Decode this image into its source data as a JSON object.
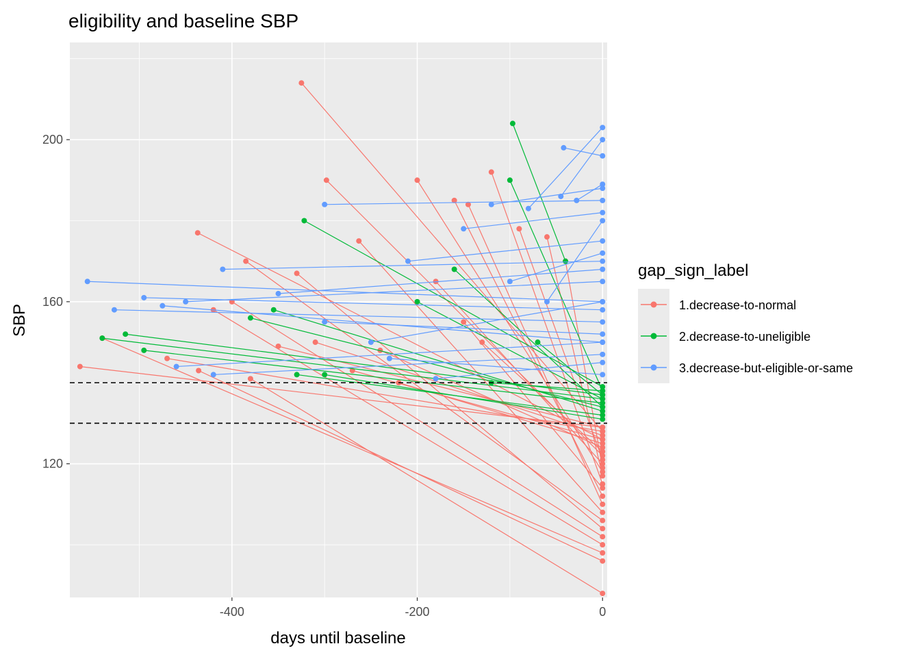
{
  "chart_data": {
    "type": "line",
    "title": "eligibility and baseline SBP",
    "xlabel": "days until baseline",
    "ylabel": "SBP",
    "xlim": [
      -575,
      5
    ],
    "ylim": [
      87,
      224
    ],
    "x_ticks": [
      -400,
      -200,
      0
    ],
    "y_ticks": [
      120,
      160,
      200
    ],
    "hlines": [
      140,
      130
    ],
    "grid": true,
    "legend": {
      "title": "gap_sign_label",
      "placement": "right"
    },
    "series": [
      {
        "name": "1.decrease-to-normal",
        "color": "#F8766D",
        "segments": [
          [
            [
              -564,
              144
            ],
            [
              0,
              129
            ]
          ],
          [
            [
              -325,
              214
            ],
            [
              0,
              128
            ]
          ],
          [
            [
              -437,
              177
            ],
            [
              0,
              126
            ]
          ],
          [
            [
              -298,
              190
            ],
            [
              0,
              122
            ]
          ],
          [
            [
              -200,
              190
            ],
            [
              0,
              118
            ]
          ],
          [
            [
              -120,
              192
            ],
            [
              0,
              115
            ]
          ],
          [
            [
              -160,
              185
            ],
            [
              0,
              112
            ]
          ],
          [
            [
              -145,
              184
            ],
            [
              0,
              110
            ]
          ],
          [
            [
              -263,
              175
            ],
            [
              0,
              108
            ]
          ],
          [
            [
              -385,
              170
            ],
            [
              0,
              106
            ]
          ],
          [
            [
              -330,
              167
            ],
            [
              0,
              104
            ]
          ],
          [
            [
              -400,
              160
            ],
            [
              0,
              102
            ]
          ],
          [
            [
              -420,
              158
            ],
            [
              0,
              100
            ]
          ],
          [
            [
              -540,
              151
            ],
            [
              0,
              98
            ]
          ],
          [
            [
              -436,
              143
            ],
            [
              0,
              96
            ]
          ],
          [
            [
              -380,
              141
            ],
            [
              0,
              88
            ]
          ],
          [
            [
              -220,
              140
            ],
            [
              0,
              125
            ]
          ],
          [
            [
              -180,
              165
            ],
            [
              0,
              120
            ]
          ],
          [
            [
              -310,
              150
            ],
            [
              0,
              127
            ]
          ],
          [
            [
              -240,
              148
            ],
            [
              0,
              124
            ]
          ],
          [
            [
              -90,
              178
            ],
            [
              0,
              121
            ]
          ],
          [
            [
              -60,
              176
            ],
            [
              0,
              117
            ]
          ],
          [
            [
              -150,
              155
            ],
            [
              0,
              114
            ]
          ],
          [
            [
              -350,
              149
            ],
            [
              0,
              129
            ]
          ],
          [
            [
              -470,
              146
            ],
            [
              0,
              128
            ]
          ],
          [
            [
              -270,
              143
            ],
            [
              0,
              126
            ]
          ],
          [
            [
              -130,
              150
            ],
            [
              0,
              123
            ]
          ],
          [
            [
              -40,
              170
            ],
            [
              0,
              119
            ]
          ]
        ]
      },
      {
        "name": "2.decrease-to-uneligible",
        "color": "#00BA38",
        "segments": [
          [
            [
              -322,
              180
            ],
            [
              0,
              139
            ]
          ],
          [
            [
              -97,
              204
            ],
            [
              -40,
              170
            ]
          ],
          [
            [
              -100,
              190
            ],
            [
              0,
              138
            ]
          ],
          [
            [
              -515,
              152
            ],
            [
              0,
              137
            ]
          ],
          [
            [
              -540,
              151
            ],
            [
              0,
              136
            ]
          ],
          [
            [
              -495,
              148
            ],
            [
              0,
              135
            ]
          ],
          [
            [
              -380,
              156
            ],
            [
              0,
              134
            ]
          ],
          [
            [
              -355,
              158
            ],
            [
              0,
              133
            ]
          ],
          [
            [
              -330,
              142
            ],
            [
              0,
              132
            ]
          ],
          [
            [
              -300,
              142
            ],
            [
              0,
              131
            ]
          ],
          [
            [
              -200,
              160
            ],
            [
              0,
              136
            ]
          ],
          [
            [
              -120,
              140
            ],
            [
              0,
              138
            ]
          ],
          [
            [
              -160,
              168
            ],
            [
              0,
              134
            ]
          ],
          [
            [
              -70,
              150
            ],
            [
              0,
              137
            ]
          ]
        ]
      },
      {
        "name": "3.decrease-but-eligible-or-same",
        "color": "#619CFF",
        "segments": [
          [
            [
              -556,
              165
            ],
            [
              0,
              160
            ]
          ],
          [
            [
              -527,
              158
            ],
            [
              0,
              155
            ]
          ],
          [
            [
              -495,
              161
            ],
            [
              0,
              158
            ]
          ],
          [
            [
              -475,
              159
            ],
            [
              0,
              150
            ]
          ],
          [
            [
              -450,
              160
            ],
            [
              0,
              165
            ]
          ],
          [
            [
              -410,
              168
            ],
            [
              0,
              170
            ]
          ],
          [
            [
              -300,
              184
            ],
            [
              0,
              185
            ]
          ],
          [
            [
              -120,
              184
            ],
            [
              0,
              188
            ]
          ],
          [
            [
              -42,
              198
            ],
            [
              0,
              196
            ]
          ],
          [
            [
              -80,
              183
            ],
            [
              0,
              203
            ]
          ],
          [
            [
              -45,
              186
            ],
            [
              0,
              200
            ]
          ],
          [
            [
              -28,
              185
            ],
            [
              0,
              189
            ]
          ],
          [
            [
              -210,
              170
            ],
            [
              0,
              175
            ]
          ],
          [
            [
              -350,
              162
            ],
            [
              0,
              168
            ]
          ],
          [
            [
              -460,
              144
            ],
            [
              0,
              150
            ]
          ],
          [
            [
              -420,
              142
            ],
            [
              0,
              147
            ]
          ],
          [
            [
              -180,
              141
            ],
            [
              0,
              145
            ]
          ],
          [
            [
              -250,
              150
            ],
            [
              0,
              160
            ]
          ],
          [
            [
              -100,
              165
            ],
            [
              0,
              172
            ]
          ],
          [
            [
              -60,
              160
            ],
            [
              0,
              180
            ]
          ],
          [
            [
              -150,
              178
            ],
            [
              0,
              182
            ]
          ],
          [
            [
              -300,
              155
            ],
            [
              0,
              152
            ]
          ],
          [
            [
              -230,
              146
            ],
            [
              0,
              142
            ]
          ]
        ]
      }
    ]
  }
}
